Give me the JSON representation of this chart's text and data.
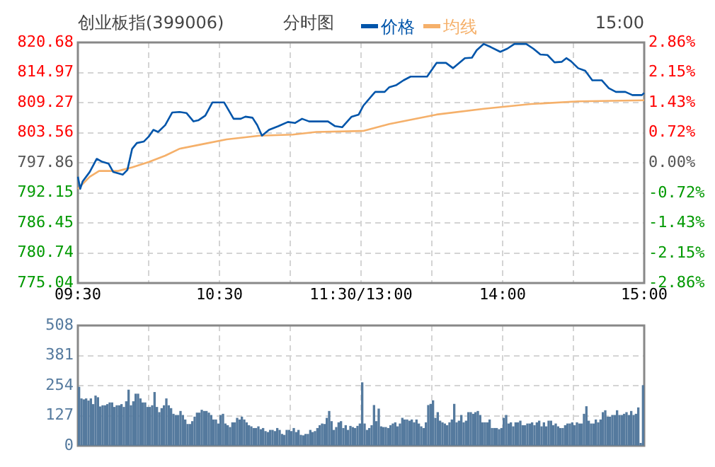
{
  "chart_data": [
    {
      "type": "line",
      "title": "创业板指(399006)",
      "subtitle": "分时图",
      "annotations": [
        "15:00"
      ],
      "legend": "top",
      "grid": true,
      "categories": [
        "09:30",
        null,
        null,
        null,
        null,
        null,
        null,
        null,
        null,
        null,
        null,
        null,
        null,
        null,
        null,
        null,
        null,
        null,
        null,
        null,
        null,
        null,
        null,
        null,
        null,
        null,
        null,
        null,
        null,
        null,
        null,
        null,
        null,
        null,
        null,
        null,
        null,
        null,
        null,
        null,
        null,
        null,
        null,
        null,
        null,
        null,
        null,
        null,
        null,
        null,
        null,
        null,
        null,
        null,
        null,
        null,
        null,
        null,
        null,
        null,
        "10:30",
        null,
        null,
        null,
        null,
        null,
        null,
        null,
        null,
        null,
        null,
        null,
        null,
        null,
        null,
        null,
        null,
        null,
        null,
        null,
        null,
        null,
        null,
        null,
        null,
        null,
        null,
        null,
        null,
        null,
        null,
        null,
        null,
        null,
        null,
        null,
        null,
        null,
        null,
        null,
        null,
        null,
        null,
        null,
        null,
        null,
        null,
        null,
        null,
        null,
        null,
        null,
        null,
        null,
        null,
        null,
        null,
        null,
        null,
        null,
        "11:30/13:00",
        null,
        null,
        null,
        null,
        null,
        null,
        null,
        null,
        null,
        null,
        null,
        null,
        null,
        null,
        null,
        null,
        null,
        null,
        null,
        null,
        null,
        null,
        null,
        null,
        null,
        null,
        null,
        null,
        null,
        null,
        null,
        null,
        null,
        null,
        null,
        null,
        null,
        null,
        null,
        null,
        null,
        null,
        null,
        null,
        null,
        null,
        null,
        null,
        null,
        null,
        null,
        null,
        null,
        null,
        null,
        null,
        null,
        null,
        null,
        "14:00",
        null,
        null,
        null,
        null,
        null,
        null,
        null,
        null,
        null,
        null,
        null,
        null,
        null,
        null,
        null,
        null,
        null,
        null,
        null,
        null,
        null,
        null,
        null,
        null,
        null,
        null,
        null,
        null,
        null,
        null,
        null,
        null,
        null,
        null,
        null,
        null,
        null,
        null,
        null,
        null,
        null,
        null,
        null,
        null,
        null,
        null,
        null,
        null,
        null,
        null,
        null,
        null,
        null,
        null,
        null,
        null,
        null,
        null,
        null,
        "15:00"
      ],
      "ylim": [
        775.04,
        820.68
      ],
      "yticks": [
        775.04,
        780.74,
        786.45,
        792.15,
        797.86,
        803.56,
        809.27,
        814.97,
        820.68
      ],
      "y2lim": [
        -2.86,
        2.86
      ],
      "y2ticks": [
        {
          "value": -2.86,
          "label": "-2.86%"
        },
        {
          "value": -2.15,
          "label": "-2.15%"
        },
        {
          "value": -1.43,
          "label": "-1.43%"
        },
        {
          "value": -0.72,
          "label": "-0.72%"
        },
        {
          "value": 0,
          "label": "0.00%"
        },
        {
          "value": 0.72,
          "label": "0.72%"
        },
        {
          "value": 1.43,
          "label": "1.43%"
        },
        {
          "value": 2.15,
          "label": "2.15%"
        },
        {
          "value": 2.86,
          "label": "2.86%"
        }
      ],
      "series": [
        {
          "name": "价格",
          "color": "#0055aa",
          "values": [
            795.2,
            792.9,
            794.3,
            null,
            null,
            796.1,
            null,
            null,
            798.6,
            null,
            798.1,
            null,
            null,
            797.7,
            null,
            796.1,
            null,
            null,
            null,
            795.6,
            null,
            796.5,
            null,
            800.5,
            null,
            801.6,
            null,
            null,
            801.9,
            null,
            802.8,
            null,
            804.1,
            null,
            803.7,
            null,
            null,
            805.0,
            null,
            null,
            807.4,
            null,
            null,
            807.5,
            null,
            null,
            807.3,
            null,
            null,
            805.7,
            null,
            805.9,
            null,
            null,
            806.8,
            null,
            null,
            809.3,
            null,
            null,
            null,
            null,
            809.3,
            null,
            null,
            null,
            806.2,
            null,
            null,
            806.2,
            null,
            806.6,
            null,
            null,
            806.4,
            null,
            805.0,
            null,
            803.0,
            null,
            null,
            804.1,
            null,
            null,
            null,
            804.8,
            null,
            null,
            null,
            805.6,
            null,
            null,
            805.4,
            null,
            null,
            806.2,
            null,
            null,
            805.7,
            null,
            null,
            805.7,
            null,
            null,
            null,
            null,
            805.7,
            null,
            null,
            804.8,
            null,
            null,
            804.6,
            null,
            null,
            null,
            806.6,
            null,
            null,
            807.0,
            null,
            808.7,
            null,
            null,
            null,
            810.8,
            811.3,
            null,
            null,
            null,
            811.3,
            null,
            812.2,
            null,
            null,
            812.6,
            null,
            null,
            813.5,
            null,
            null,
            814.2,
            null,
            null,
            null,
            null,
            null,
            null,
            814.2,
            null,
            null,
            null,
            816.8,
            null,
            null,
            null,
            816.8,
            null,
            null,
            815.8,
            null,
            null,
            null,
            null,
            817.7,
            null,
            null,
            817.8,
            null,
            819.2,
            null,
            null,
            820.4,
            null,
            null,
            819.8,
            null,
            null,
            null,
            818.9,
            null,
            null,
            819.5,
            null,
            null,
            820.4,
            null,
            null,
            null,
            null,
            820.4,
            null,
            null,
            819.5,
            null,
            null,
            818.4,
            null,
            null,
            818.3,
            null,
            null,
            816.9,
            null,
            null,
            817.0,
            null,
            817.7,
            null,
            817.1,
            null,
            null,
            815.8,
            null,
            null,
            815.3,
            null,
            null,
            813.5,
            null,
            null,
            null,
            813.5,
            null,
            null,
            812.0,
            null,
            null,
            811.3,
            null,
            null,
            null,
            811.3,
            null,
            null,
            810.7,
            null,
            null,
            null,
            810.7,
            811.1
          ]
        },
        {
          "name": "均线",
          "color": "#f5b06a",
          "values": [
            792.9,
            null,
            null,
            null,
            null,
            795.2,
            null,
            null,
            null,
            796.3,
            null,
            null,
            null,
            null,
            null,
            null,
            null,
            796.3,
            null,
            null,
            null,
            null,
            null,
            797.0,
            null,
            null,
            null,
            null,
            null,
            null,
            798.0,
            null,
            null,
            null,
            null,
            null,
            null,
            799.2,
            null,
            null,
            null,
            null,
            null,
            800.5,
            null,
            null,
            null,
            null,
            null,
            null,
            null,
            null,
            null,
            801.4,
            null,
            null,
            null,
            null,
            null,
            null,
            null,
            null,
            null,
            802.3,
            null,
            null,
            null,
            null,
            null,
            null,
            null,
            null,
            null,
            null,
            null,
            null,
            null,
            803.0,
            null,
            null,
            null,
            null,
            null,
            null,
            null,
            null,
            null,
            null,
            null,
            null,
            null,
            803.2,
            null,
            null,
            null,
            null,
            null,
            null,
            null,
            null,
            null,
            803.7,
            null,
            null,
            null,
            null,
            null,
            null,
            null,
            null,
            null,
            null,
            null,
            null,
            null,
            null,
            null,
            null,
            null,
            null,
            null,
            803.9,
            null,
            null,
            null,
            null,
            null,
            null,
            null,
            null,
            null,
            null,
            805.2,
            null,
            null,
            null,
            null,
            null,
            null,
            null,
            null,
            null,
            null,
            null,
            null,
            null,
            null,
            null,
            null,
            null,
            null,
            null,
            807.0,
            null,
            null,
            null,
            null,
            null,
            null,
            null,
            null,
            null,
            null,
            null,
            null,
            null,
            null,
            null,
            null,
            null,
            null,
            null,
            808.1,
            null,
            null,
            null,
            null,
            null,
            null,
            null,
            null,
            null,
            null,
            null,
            null,
            null,
            null,
            null,
            null,
            null,
            null,
            null,
            809.0,
            null,
            null,
            null,
            null,
            null,
            null,
            null,
            null,
            null,
            null,
            null,
            null,
            null,
            null,
            null,
            null,
            null,
            null,
            null,
            809.5,
            null,
            null,
            null,
            null,
            null,
            null,
            null,
            null,
            null,
            null,
            null,
            null,
            null,
            null,
            null,
            null,
            null,
            null,
            null,
            null,
            null,
            null,
            null,
            null,
            null,
            null,
            null,
            809.7
          ]
        }
      ]
    },
    {
      "type": "bar",
      "grid": true,
      "tick_labels": "y",
      "color": "#557a9e",
      "ylim": [
        0,
        508
      ],
      "yticks": [
        0,
        127,
        254,
        381,
        508
      ],
      "categories": [
        null,
        null,
        null,
        null,
        null,
        null,
        null,
        null,
        null,
        null,
        null,
        null,
        null,
        null,
        null,
        null,
        null,
        null,
        null,
        null,
        null,
        null,
        null,
        null,
        null,
        null,
        null,
        null,
        null,
        null,
        null,
        null,
        null,
        null,
        null,
        null,
        null,
        null,
        null,
        null,
        null,
        null,
        null,
        null,
        null,
        null,
        null,
        null,
        null,
        null,
        null,
        null,
        null,
        null,
        null,
        null,
        null,
        null,
        null,
        null,
        null,
        null,
        null,
        null,
        null,
        null,
        null,
        null,
        null,
        null,
        null,
        null,
        null,
        null,
        null,
        null,
        null,
        null,
        null,
        null,
        null,
        null,
        null,
        null,
        null,
        null,
        null,
        null,
        null,
        null,
        null,
        null,
        null,
        null,
        null,
        null,
        null,
        null,
        null,
        null,
        null,
        null,
        null,
        null,
        null,
        null,
        null,
        null,
        null,
        null,
        null,
        null,
        null,
        null,
        null,
        null,
        null,
        null,
        null,
        null,
        null,
        null,
        null,
        null,
        null,
        null,
        null,
        null,
        null,
        null,
        null,
        null,
        null,
        null,
        null,
        null,
        null,
        null,
        null,
        null,
        null,
        null,
        null,
        null,
        null,
        null,
        null,
        null,
        null,
        null,
        null,
        null,
        null,
        null,
        null,
        null,
        null,
        null,
        null,
        null,
        null,
        null,
        null,
        null,
        null,
        null,
        null,
        null,
        null,
        null,
        null,
        null,
        null,
        null,
        null,
        null,
        null,
        null,
        null,
        null,
        null,
        null,
        null,
        null,
        null,
        null,
        null,
        null,
        null,
        null,
        null,
        null,
        null,
        null,
        null,
        null,
        null,
        null,
        null,
        null,
        null,
        null,
        null,
        null,
        null,
        null,
        null,
        null,
        null,
        null,
        null,
        null,
        null,
        null,
        null,
        null,
        null,
        null,
        null,
        null,
        null,
        null,
        null,
        null,
        null,
        null,
        null,
        null,
        null,
        null,
        null,
        null,
        null,
        null,
        null,
        null,
        null,
        null,
        null,
        null
      ],
      "values": [
        247,
        198,
        194,
        198,
        189,
        198,
        174,
        210,
        203,
        164,
        169,
        169,
        174,
        181,
        181,
        162,
        169,
        169,
        174,
        162,
        186,
        235,
        169,
        186,
        218,
        218,
        198,
        181,
        181,
        162,
        162,
        169,
        225,
        162,
        140,
        157,
        169,
        198,
        169,
        157,
        133,
        128,
        128,
        145,
        128,
        109,
        90,
        90,
        102,
        121,
        138,
        138,
        150,
        145,
        145,
        138,
        128,
        109,
        109,
        92,
        128,
        133,
        92,
        85,
        77,
        97,
        97,
        116,
        109,
        121,
        109,
        97,
        85,
        80,
        73,
        73,
        80,
        68,
        73,
        60,
        56,
        65,
        65,
        60,
        73,
        65,
        48,
        44,
        65,
        65,
        60,
        73,
        56,
        65,
        44,
        42,
        48,
        48,
        65,
        56,
        60,
        73,
        85,
        92,
        90,
        116,
        145,
        102,
        65,
        77,
        97,
        102,
        73,
        85,
        65,
        82,
        77,
        73,
        82,
        92,
        266,
        92,
        65,
        73,
        85,
        170,
        102,
        155,
        80,
        77,
        77,
        73,
        85,
        92,
        97,
        80,
        92,
        116,
        109,
        109,
        104,
        109,
        97,
        109,
        92,
        80,
        73,
        97,
        170,
        175,
        190,
        116,
        140,
        104,
        97,
        92,
        85,
        97,
        109,
        175,
        97,
        104,
        128,
        97,
        104,
        140,
        140,
        133,
        140,
        145,
        128,
        97,
        97,
        97,
        109,
        73,
        73,
        73,
        68,
        73,
        116,
        128,
        92,
        97,
        80,
        97,
        97,
        104,
        85,
        85,
        92,
        92,
        97,
        85,
        97,
        104,
        80,
        97,
        80,
        104,
        104,
        85,
        92,
        80,
        73,
        73,
        85,
        92,
        92,
        97,
        85,
        97,
        92,
        92,
        133,
        165,
        104,
        92,
        92,
        109,
        97,
        109,
        140,
        148,
        121,
        121,
        128,
        128,
        148,
        128,
        128,
        133,
        140,
        128,
        145,
        128,
        133,
        160,
        10,
        254
      ]
    }
  ]
}
